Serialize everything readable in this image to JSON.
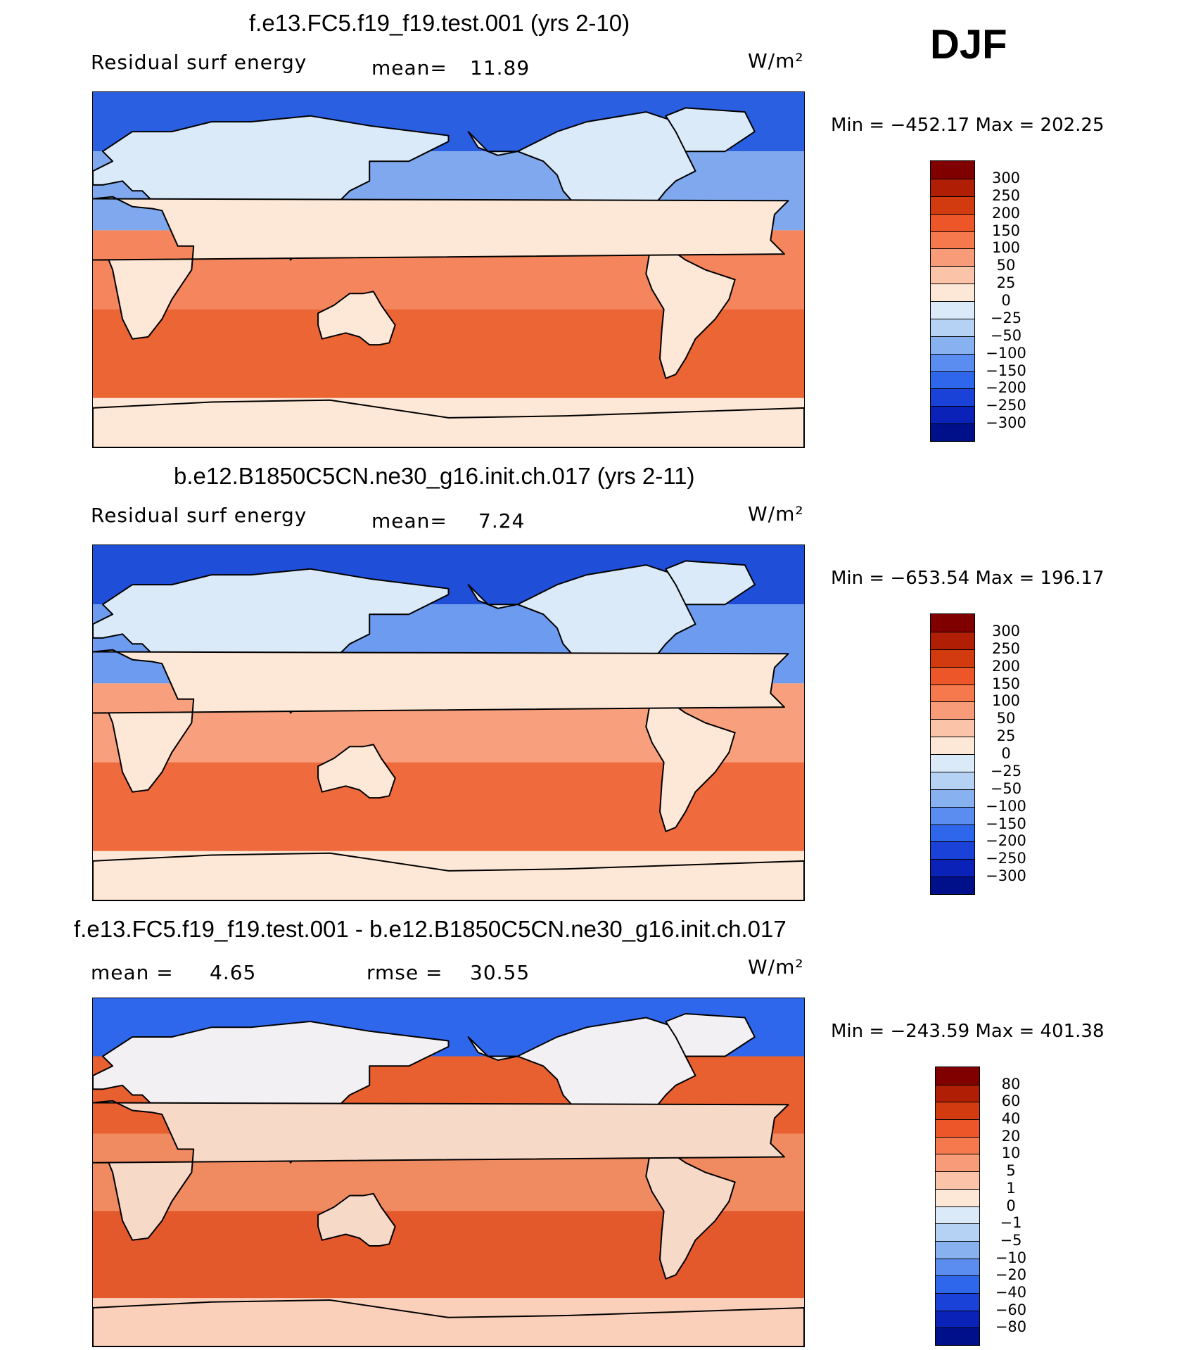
{
  "season": "DJF",
  "units": "W/m²",
  "panels": [
    {
      "title": "f.e13.FC5.f19_f19.test.001 (yrs 2-10)",
      "variable": "Residual surf energy",
      "stat1_label": "mean=",
      "stat1_value": "11.89",
      "stat2_label": "",
      "stat2_value": "",
      "min_max": "Min = −452.17 Max = 202.25",
      "colorbar_labels": [
        "300",
        "250",
        "200",
        "150",
        "100",
        "50",
        "25",
        "0",
        "−25",
        "−50",
        "−100",
        "−150",
        "−200",
        "−250",
        "−300"
      ],
      "colors": [
        "#800000",
        "#b01e05",
        "#d23a0f",
        "#ec5628",
        "#f5794d",
        "#f89b78",
        "#fbc3a8",
        "#fde7d6",
        "#dbeaf8",
        "#b5d2f5",
        "#88b1f0",
        "#5b8df0",
        "#2f67ec",
        "#1a42d8",
        "#0a22b8",
        "#00108a"
      ],
      "ocean_n": "#7fa8ee",
      "ocean_far_n": "#2a5fe2",
      "ocean_trop": "#f5855c",
      "ocean_s": "#ec6535",
      "land_n": "#dbeaf8",
      "land_s": "#fde7d6",
      "antarctica": "#fde7d6"
    },
    {
      "title": "b.e12.B1850C5CN.ne30_g16.init.ch.017 (yrs 2-11)",
      "variable": "Residual surf energy",
      "stat1_label": "mean=",
      "stat1_value": "7.24",
      "stat2_label": "",
      "stat2_value": "",
      "min_max": "Min = −653.54 Max = 196.17",
      "colorbar_labels": [
        "300",
        "250",
        "200",
        "150",
        "100",
        "50",
        "25",
        "0",
        "−25",
        "−50",
        "−100",
        "−150",
        "−200",
        "−250",
        "−300"
      ],
      "colors": [
        "#800000",
        "#b01e05",
        "#d23a0f",
        "#ec5628",
        "#f5794d",
        "#f89b78",
        "#fbc3a8",
        "#fde7d6",
        "#dbeaf8",
        "#b5d2f5",
        "#88b1f0",
        "#5b8df0",
        "#2f67ec",
        "#1a42d8",
        "#0a22b8",
        "#00108a"
      ],
      "ocean_n": "#6d9bef",
      "ocean_far_n": "#1f4fd8",
      "ocean_trop": "#f8a07d",
      "ocean_s": "#ef6a3c",
      "land_n": "#dbeaf8",
      "land_s": "#fde7d6",
      "antarctica": "#fde7d6"
    },
    {
      "title": "f.e13.FC5.f19_f19.test.001 - b.e12.B1850C5CN.ne30_g16.init.ch.017",
      "variable": "",
      "stat1_label": "mean =",
      "stat1_value": "4.65",
      "stat2_label": "rmse =",
      "stat2_value": "30.55",
      "min_max": "Min = −243.59 Max = 401.38",
      "colorbar_labels": [
        "80",
        "60",
        "40",
        "20",
        "10",
        "5",
        "1",
        "0",
        "−1",
        "−5",
        "−10",
        "−20",
        "−40",
        "−60",
        "−80"
      ],
      "colors": [
        "#800000",
        "#b01e05",
        "#d23a0f",
        "#ec5628",
        "#f5794d",
        "#f89b78",
        "#fbc3a8",
        "#fde7d6",
        "#dbeaf8",
        "#b5d2f5",
        "#88b1f0",
        "#5b8df0",
        "#2f67ec",
        "#1a42d8",
        "#0a22b8",
        "#00108a"
      ],
      "ocean_n": "#e8602f",
      "ocean_far_n": "#2f67ec",
      "ocean_trop": "#f08a60",
      "ocean_s": "#e4592c",
      "land_n": "#f3f0f4",
      "land_s": "#f7d9c8",
      "antarctica": "#fbd0bb"
    }
  ]
}
